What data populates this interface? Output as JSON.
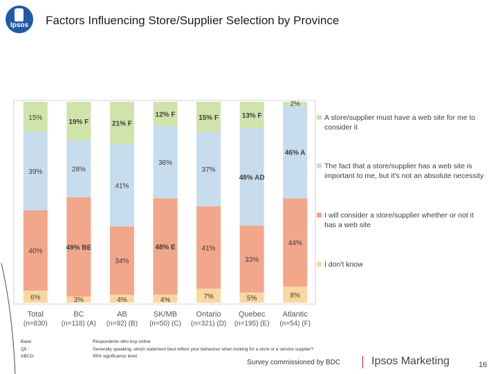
{
  "logo": {
    "text": "Ipsos"
  },
  "header": {
    "title": "Factors Influencing Store/Supplier Selection by Province"
  },
  "chart_data": {
    "type": "bar",
    "stacked": true,
    "percent": true,
    "title": "",
    "xlabel": "",
    "ylabel": "",
    "ylim": [
      0,
      100
    ],
    "categories": [
      "Total",
      "BC",
      "AB",
      "SK/MB",
      "Ontario",
      "Quebec",
      "Atlantic"
    ],
    "category_sub": [
      "(n=830)",
      "(n=118) (A)",
      "(n=92) (B)",
      "(n=50) (C)",
      "(n=321) (D)",
      "(n=195) (E)",
      "(n=54) (F)"
    ],
    "series": [
      {
        "name": "I don't know",
        "color": "#fad7a0",
        "values": [
          6,
          3,
          4,
          4,
          7,
          5,
          8
        ],
        "labels": [
          "6%",
          "3%",
          "4%",
          "4%",
          "7%",
          "5%",
          "8%"
        ]
      },
      {
        "name": "I will consider a store/supplier whether or not it has a web site",
        "color": "#f2a68a",
        "values": [
          40,
          49,
          34,
          48,
          41,
          33,
          44
        ],
        "labels": [
          "40%",
          "49% BE",
          "34%",
          "48% E",
          "41%",
          "33%",
          "44%"
        ]
      },
      {
        "name": "The fact that a store/supplier has a web site is important to me, but it's not an absolute necessity",
        "color": "#c7dcec",
        "values": [
          39,
          28,
          41,
          36,
          37,
          48,
          46
        ],
        "labels": [
          "39%",
          "28%",
          "41%",
          "36%",
          "37%",
          "48% AD",
          "46% A"
        ]
      },
      {
        "name": "A store/supplier must have a web site for me to consider it",
        "color": "#cfe3ab",
        "values": [
          15,
          19,
          21,
          12,
          15,
          13,
          2
        ],
        "labels": [
          "15%",
          "19% F",
          "21% F",
          "12% F",
          "15% F",
          "13% F",
          "2%"
        ]
      }
    ],
    "legend_position": "right"
  },
  "footnotes": {
    "labels": [
      "Base:",
      "Q5 :",
      "ABCD:"
    ],
    "texts": [
      "Respondents who buy online",
      "Generally speaking, which statement best reflect your behaviour when looking for a store or a service supplier?",
      "95% significance level"
    ]
  },
  "footer": {
    "credit": "Survey commissioned by BDC",
    "brand": "Ipsos Marketing",
    "page": "16"
  }
}
